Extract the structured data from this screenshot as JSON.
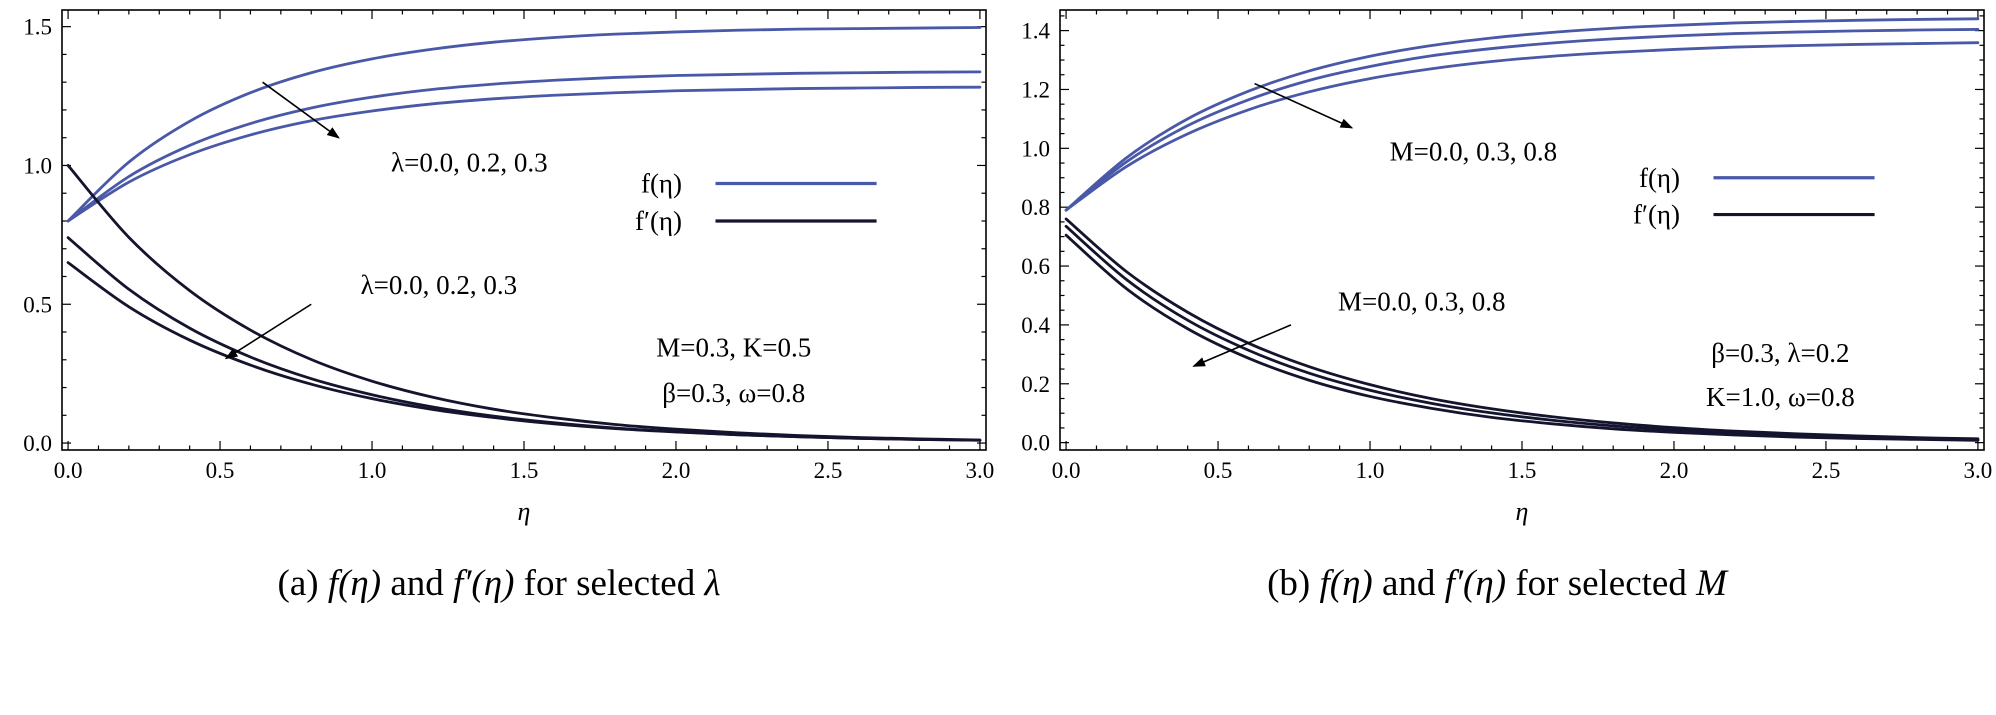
{
  "figure": {
    "colors": {
      "f": "#4a58a8",
      "fp": "#14142e",
      "frame": "#000000",
      "text": "#000000"
    },
    "background": "#ffffff"
  },
  "chart_data": [
    {
      "id": "a",
      "type": "line",
      "xlabel": "η",
      "ylabel": "",
      "grid": false,
      "xlim": [
        -0.02,
        3.02
      ],
      "ylim": [
        -0.025,
        1.56
      ],
      "xticks": {
        "values": [
          0,
          0.5,
          1,
          1.5,
          2,
          2.5,
          3
        ],
        "labels": [
          "0.0",
          "0.5",
          "1.0",
          "1.5",
          "2.0",
          "2.5",
          "3.0"
        ],
        "minor_step": 0.1
      },
      "yticks": {
        "values": [
          0,
          0.5,
          1,
          1.5
        ],
        "labels": [
          "0.0",
          "0.5",
          "1.0",
          "1.5"
        ],
        "minor_step": 0.1
      },
      "x": [
        0,
        0.2,
        0.4,
        0.6,
        0.8,
        1,
        1.2,
        1.4,
        1.6,
        1.8,
        2,
        2.2,
        2.4,
        2.6,
        2.8,
        3
      ],
      "series": [
        {
          "name": "f-lambda-0.0",
          "group": "f",
          "label": "f(η), λ=0.0",
          "values": [
            0.8,
            1.012,
            1.159,
            1.262,
            1.334,
            1.384,
            1.419,
            1.444,
            1.461,
            1.473,
            1.481,
            1.487,
            1.491,
            1.493,
            1.495,
            1.497
          ]
        },
        {
          "name": "f-lambda-0.2",
          "group": "f",
          "label": "f(η), λ=0.2",
          "values": [
            0.8,
            0.96,
            1.072,
            1.151,
            1.207,
            1.246,
            1.274,
            1.293,
            1.307,
            1.317,
            1.324,
            1.328,
            1.332,
            1.334,
            1.336,
            1.337
          ]
        },
        {
          "name": "f-lambda-0.3",
          "group": "f",
          "label": "f(η), λ=0.3",
          "values": [
            0.8,
            0.94,
            1.039,
            1.11,
            1.161,
            1.196,
            1.222,
            1.24,
            1.253,
            1.262,
            1.269,
            1.273,
            1.277,
            1.279,
            1.281,
            1.282
          ]
        },
        {
          "name": "fp-lambda-0.0",
          "group": "fp",
          "label": "f′(η), λ=0.0",
          "values": [
            1.0,
            0.741,
            0.549,
            0.407,
            0.301,
            0.223,
            0.165,
            0.122,
            0.091,
            0.067,
            0.05,
            0.037,
            0.027,
            0.02,
            0.015,
            0.011
          ]
        },
        {
          "name": "fp-lambda-0.2",
          "group": "fp",
          "label": "f′(η), λ=0.2",
          "values": [
            0.74,
            0.554,
            0.414,
            0.31,
            0.232,
            0.174,
            0.13,
            0.097,
            0.073,
            0.054,
            0.041,
            0.03,
            0.023,
            0.017,
            0.013,
            0.01
          ]
        },
        {
          "name": "fp-lambda-0.3",
          "group": "fp",
          "label": "f′(η), λ=0.3",
          "values": [
            0.65,
            0.491,
            0.371,
            0.281,
            0.212,
            0.16,
            0.121,
            0.092,
            0.069,
            0.052,
            0.04,
            0.03,
            0.023,
            0.017,
            0.013,
            0.01
          ]
        }
      ],
      "annotations": [
        {
          "text": "λ=0.0, 0.2, 0.3",
          "x": 1.32,
          "y": 1.01,
          "arrow": [
            0.64,
            1.3,
            0.89,
            1.1
          ]
        },
        {
          "text": "λ=0.0, 0.2, 0.3",
          "x": 1.22,
          "y": 0.57,
          "arrow": [
            0.8,
            0.5,
            0.52,
            0.305
          ]
        }
      ],
      "param_text": [
        {
          "text": "M=0.3, K=0.5",
          "x": 2.19,
          "y": 0.345
        },
        {
          "text": "β=0.3, ω=0.8",
          "x": 2.19,
          "y": 0.18
        }
      ],
      "legend": {
        "label_x": 2.02,
        "line_x1": 2.13,
        "line_x2": 2.66,
        "rows": [
          {
            "label": "f(η)",
            "color": "f",
            "y": 0.935
          },
          {
            "label": "f′(η)",
            "color": "fp",
            "y": 0.8
          }
        ]
      },
      "caption": {
        "index": "(a)",
        "f": "f(η)",
        "conj": "and",
        "fp": "f′(η)",
        "tail": "for selected",
        "param": "λ"
      }
    },
    {
      "id": "b",
      "type": "line",
      "xlabel": "η",
      "ylabel": "",
      "grid": false,
      "xlim": [
        -0.02,
        3.02
      ],
      "ylim": [
        -0.025,
        1.47
      ],
      "xticks": {
        "values": [
          0,
          0.5,
          1,
          1.5,
          2,
          2.5,
          3
        ],
        "labels": [
          "0.0",
          "0.5",
          "1.0",
          "1.5",
          "2.0",
          "2.5",
          "3.0"
        ],
        "minor_step": 0.1
      },
      "yticks": {
        "values": [
          0,
          0.2,
          0.4,
          0.6,
          0.8,
          1,
          1.2,
          1.4
        ],
        "labels": [
          "0.0",
          "0.2",
          "0.4",
          "0.6",
          "0.8",
          "1.0",
          "1.2",
          "1.4"
        ],
        "minor_step": 0.05
      },
      "x": [
        0,
        0.2,
        0.4,
        0.6,
        0.8,
        1,
        1.2,
        1.4,
        1.6,
        1.8,
        2,
        2.2,
        2.4,
        2.6,
        2.8,
        3
      ],
      "series": [
        {
          "name": "f-M-0.0",
          "group": "f",
          "label": "f(η), M=0.0",
          "values": [
            0.79,
            0.969,
            1.1,
            1.194,
            1.263,
            1.313,
            1.349,
            1.375,
            1.394,
            1.408,
            1.418,
            1.426,
            1.431,
            1.435,
            1.438,
            1.44
          ]
        },
        {
          "name": "f-M-0.3",
          "group": "f",
          "label": "f(η), M=0.3",
          "values": [
            0.79,
            0.955,
            1.077,
            1.165,
            1.231,
            1.278,
            1.314,
            1.339,
            1.358,
            1.372,
            1.382,
            1.39,
            1.395,
            1.399,
            1.402,
            1.404
          ]
        },
        {
          "name": "f-M-0.8",
          "group": "f",
          "label": "f(η), M=0.8",
          "values": [
            0.79,
            0.939,
            1.049,
            1.131,
            1.192,
            1.237,
            1.27,
            1.295,
            1.313,
            1.326,
            1.336,
            1.344,
            1.349,
            1.353,
            1.356,
            1.359
          ]
        },
        {
          "name": "fp-M-0.0",
          "group": "fp",
          "label": "f′(η), M=0.0",
          "values": [
            0.76,
            0.58,
            0.443,
            0.338,
            0.258,
            0.197,
            0.15,
            0.115,
            0.088,
            0.067,
            0.051,
            0.039,
            0.03,
            0.023,
            0.017,
            0.013
          ]
        },
        {
          "name": "fp-M-0.3",
          "group": "fp",
          "label": "f′(η), M=0.3",
          "values": [
            0.735,
            0.553,
            0.416,
            0.314,
            0.236,
            0.178,
            0.134,
            0.101,
            0.076,
            0.057,
            0.043,
            0.032,
            0.024,
            0.018,
            0.014,
            0.01
          ]
        },
        {
          "name": "fp-M-0.8",
          "group": "fp",
          "label": "f′(η), M=0.8",
          "values": [
            0.705,
            0.522,
            0.387,
            0.287,
            0.212,
            0.157,
            0.117,
            0.086,
            0.064,
            0.047,
            0.035,
            0.026,
            0.019,
            0.014,
            0.011,
            0.008
          ]
        }
      ],
      "annotations": [
        {
          "text": "M=0.0, 0.3, 0.8",
          "x": 1.34,
          "y": 0.99,
          "arrow": [
            0.62,
            1.22,
            0.94,
            1.07
          ]
        },
        {
          "text": "M=0.0, 0.3, 0.8",
          "x": 1.17,
          "y": 0.48,
          "arrow": [
            0.74,
            0.4,
            0.42,
            0.26
          ]
        }
      ],
      "param_text": [
        {
          "text": "β=0.3, λ=0.2",
          "x": 2.35,
          "y": 0.305
        },
        {
          "text": "K=1.0, ω=0.8",
          "x": 2.35,
          "y": 0.155
        }
      ],
      "legend": {
        "label_x": 2.02,
        "line_x1": 2.13,
        "line_x2": 2.66,
        "rows": [
          {
            "label": "f(η)",
            "color": "f",
            "y": 0.9
          },
          {
            "label": "f′(η)",
            "color": "fp",
            "y": 0.775
          }
        ]
      },
      "caption": {
        "index": "(b)",
        "f": "f(η)",
        "conj": "and",
        "fp": "f′(η)",
        "tail": "for selected",
        "param": "M"
      }
    }
  ]
}
